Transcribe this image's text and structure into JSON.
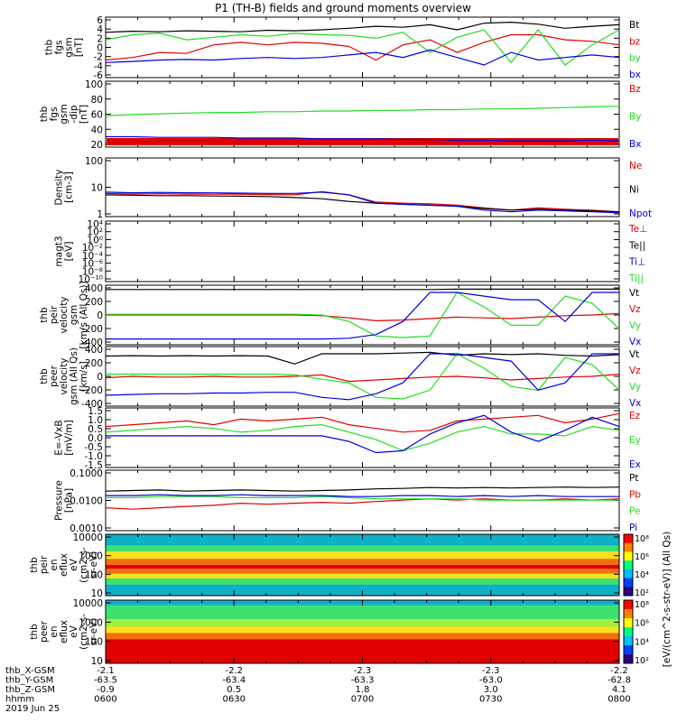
{
  "title": "P1 (TH-B) fields and ground moments overview",
  "colors": {
    "black": "#000000",
    "red": "#e00000",
    "green": "#22dd22",
    "blue": "#0000dd"
  },
  "chart_data": [
    {
      "type": "line",
      "ylabel": [
        "thb",
        "fgs",
        "gsm",
        "[nT]"
      ],
      "yticks": [
        "6",
        "4",
        "2",
        "0",
        "-2",
        "-4",
        "-6"
      ],
      "ylim": [
        -6,
        6
      ],
      "series": [
        {
          "name": "Bt",
          "color": "#000000",
          "values": [
            3.0,
            3.2,
            3.1,
            3.3,
            3.2,
            3.1,
            3.4,
            3.3,
            3.5,
            3.8,
            4.2,
            4.0,
            4.5,
            3.5,
            4.8,
            5.0,
            4.6,
            3.8,
            4.2,
            4.5
          ]
        },
        {
          "name": "bz",
          "color": "#e00000",
          "values": [
            -2.5,
            -2.0,
            -1.0,
            -1.2,
            0.5,
            1.0,
            0.5,
            1.0,
            0.8,
            0.2,
            -2.5,
            0.5,
            1.5,
            -1.0,
            1.0,
            2.5,
            2.5,
            1.5,
            1.2,
            0.5
          ]
        },
        {
          "name": "by",
          "color": "#22dd22",
          "values": [
            1.5,
            2.5,
            2.8,
            1.5,
            2.0,
            2.5,
            2.2,
            2.8,
            2.5,
            2.4,
            1.8,
            3.0,
            -1.0,
            2.0,
            3.5,
            -3.0,
            3.5,
            -3.5,
            0.5,
            3.5
          ]
        },
        {
          "name": "bx",
          "color": "#0000dd",
          "values": [
            -3.0,
            -2.8,
            -2.5,
            -2.4,
            -2.5,
            -2.2,
            -2.0,
            -2.2,
            -2.0,
            -1.5,
            -1.0,
            -2.0,
            -0.5,
            -2.0,
            -3.5,
            -1.0,
            -2.5,
            -2.0,
            -1.5,
            -2.0
          ]
        }
      ]
    },
    {
      "type": "line",
      "ylabel": [
        "thb",
        "fgs",
        "gsm",
        "-dip",
        "[nT]"
      ],
      "yticks": [
        "100",
        "80",
        "60",
        "40",
        "20"
      ],
      "ylim": [
        5,
        100
      ],
      "series": [
        {
          "name": "Bz",
          "color": "#e00000",
          "values": []
        },
        {
          "name": "By",
          "color": "#22dd22",
          "values": [
            50,
            52,
            53,
            54,
            55,
            55,
            56,
            56,
            57,
            57,
            58,
            58,
            59,
            59,
            60,
            60,
            61,
            62,
            63,
            64
          ]
        },
        {
          "name": "Bx",
          "color": "#0000dd",
          "values": [
            20,
            20,
            19,
            19,
            19,
            18,
            18,
            18,
            17,
            17,
            17,
            16,
            16,
            15,
            15,
            14,
            14,
            14,
            15,
            14
          ]
        }
      ]
    },
    {
      "type": "line",
      "scale": "log",
      "ylabel": [
        "Density",
        "[cm-3]"
      ],
      "yticks": [
        "100",
        "10",
        "1"
      ],
      "ylim": [
        0.6,
        300
      ],
      "series": [
        {
          "name": "Ne",
          "color": "#e00000",
          "values": [
            7,
            6.5,
            6.8,
            6.5,
            6.4,
            6.5,
            6.2,
            6.0,
            8.5,
            6.0,
            2.8,
            2.5,
            2.3,
            2.0,
            1.5,
            1.2,
            1.5,
            1.3,
            1.2,
            1.0
          ]
        },
        {
          "name": "Ni",
          "color": "#000000",
          "values": [
            6,
            5.8,
            5.5,
            5.5,
            5.3,
            5.2,
            5.0,
            4.5,
            4.0,
            3.0,
            2.5,
            2.2,
            2.0,
            1.8,
            1.4,
            1.2,
            1.3,
            1.2,
            1.1,
            1.0
          ]
        },
        {
          "name": "Npot",
          "color": "#0000dd",
          "values": [
            8,
            7.5,
            7.8,
            7.5,
            7.4,
            7.2,
            7.0,
            7.0,
            8.0,
            6.0,
            2.5,
            2.2,
            2.0,
            1.8,
            1.2,
            1.0,
            1.2,
            1.1,
            1.0,
            0.9
          ]
        }
      ]
    },
    {
      "type": "line",
      "scale": "log",
      "ylabel": [
        "magt3",
        "[eV]"
      ],
      "yticks": [
        "10⁴",
        "10²",
        "10⁰",
        "10⁻²",
        "10⁻⁴",
        "10⁻⁶",
        "10⁻⁸",
        "10⁻¹⁰"
      ],
      "ylim": [
        1e-11,
        100000.0
      ],
      "series": [
        {
          "name": "Te⊥",
          "color": "#e00000",
          "values": []
        },
        {
          "name": "Te||",
          "color": "#000000",
          "values": []
        },
        {
          "name": "Ti⊥",
          "color": "#0000dd",
          "values": []
        },
        {
          "name": "Ti||",
          "color": "#22dd22",
          "values": []
        }
      ]
    },
    {
      "type": "line",
      "ylabel": [
        "thb",
        "peir",
        "velocity",
        "gsm",
        "[km/s (All Qs)]"
      ],
      "yticks": [
        "400",
        "200",
        "0",
        "-200",
        "-400"
      ],
      "ylim": [
        -420,
        400
      ],
      "series": [
        {
          "name": "Vt",
          "color": "#000000",
          "values": [
            340,
            340,
            340,
            340,
            340,
            340,
            340,
            340,
            340,
            340,
            340,
            340,
            340,
            345,
            345,
            345,
            345,
            345,
            345,
            345
          ]
        },
        {
          "name": "Vz",
          "color": "#e00000",
          "values": [
            -10,
            -10,
            -10,
            -10,
            -10,
            -10,
            -10,
            -10,
            -20,
            -50,
            -90,
            -80,
            -60,
            -40,
            -50,
            -60,
            -40,
            -20,
            -10,
            10
          ]
        },
        {
          "name": "Vy",
          "color": "#22dd22",
          "values": [
            0,
            0,
            0,
            0,
            0,
            0,
            0,
            0,
            -10,
            -100,
            -300,
            -320,
            -300,
            300,
            100,
            -150,
            -150,
            250,
            150,
            -200
          ]
        },
        {
          "name": "Vx",
          "color": "#0000dd",
          "values": [
            -340,
            -340,
            -340,
            -340,
            -340,
            -340,
            -340,
            -340,
            -340,
            -330,
            -280,
            -100,
            300,
            300,
            250,
            200,
            200,
            -100,
            300,
            300
          ]
        }
      ]
    },
    {
      "type": "line",
      "ylabel": [
        "thb",
        "peer",
        "velocity",
        "gsm (All Qs)",
        "[km/s]"
      ],
      "yticks": [
        "400",
        "200",
        "0",
        "-200",
        "-400"
      ],
      "ylim": [
        -420,
        400
      ],
      "series": [
        {
          "name": "Vt",
          "color": "#000000",
          "values": [
            270,
            275,
            270,
            275,
            270,
            275,
            270,
            160,
            300,
            300,
            300,
            310,
            320,
            280,
            300,
            290,
            300,
            280,
            270,
            290
          ]
        },
        {
          "name": "Vz",
          "color": "#e00000",
          "values": [
            -30,
            -10,
            -20,
            -20,
            -10,
            -20,
            -20,
            -10,
            10,
            -80,
            -60,
            -40,
            -20,
            -10,
            -30,
            -60,
            -40,
            -20,
            -10,
            20
          ]
        },
        {
          "name": "Vy",
          "color": "#22dd22",
          "values": [
            20,
            20,
            20,
            20,
            20,
            20,
            20,
            10,
            -50,
            -100,
            -300,
            -320,
            -200,
            300,
            100,
            -150,
            -200,
            250,
            150,
            -200
          ]
        },
        {
          "name": "Vx",
          "color": "#0000dd",
          "values": [
            -270,
            -260,
            -250,
            -250,
            -240,
            -240,
            -230,
            -230,
            -300,
            -330,
            -250,
            -100,
            300,
            300,
            250,
            200,
            -200,
            -100,
            300,
            300
          ]
        }
      ]
    },
    {
      "type": "line",
      "ylabel": [
        "E=-VxB",
        "[mV/m]"
      ],
      "yticks": [
        "1.5",
        "1.0",
        "0.5",
        "0.0",
        "-0.5",
        "-1.0",
        "-1.5"
      ],
      "ylim": [
        -1.7,
        1.5
      ],
      "series": [
        {
          "name": "Ez",
          "color": "#e00000",
          "values": [
            0.5,
            0.6,
            0.7,
            0.8,
            0.6,
            0.9,
            0.8,
            0.9,
            1.0,
            0.6,
            0.4,
            0.2,
            0.3,
            0.8,
            0.9,
            1.0,
            1.1,
            0.7,
            0.9,
            1.2
          ]
        },
        {
          "name": "Ey",
          "color": "#22dd22",
          "values": [
            0.2,
            0.3,
            0.4,
            0.5,
            0.4,
            0.2,
            0.3,
            0.5,
            0.6,
            0.2,
            -0.2,
            -0.8,
            -0.4,
            0.2,
            0.5,
            0.1,
            0.1,
            0.0,
            0.5,
            0.3
          ]
        },
        {
          "name": "Ex",
          "color": "#0000dd",
          "values": [
            0.0,
            0.0,
            0.0,
            0.0,
            0.0,
            0.0,
            0.0,
            0.0,
            0.0,
            -0.3,
            -0.9,
            -0.8,
            0.1,
            0.7,
            1.1,
            0.2,
            -0.3,
            0.3,
            1.0,
            0.5
          ]
        }
      ]
    },
    {
      "type": "line",
      "scale": "log",
      "ylabel": [
        "Pressure",
        "[nPa]"
      ],
      "yticks": [
        "0.1000",
        "0.0100",
        "0.0010"
      ],
      "ylim": [
        0.0005,
        0.12
      ],
      "series": [
        {
          "name": "Pt",
          "color": "#000000",
          "values": [
            0.018,
            0.019,
            0.02,
            0.018,
            0.019,
            0.02,
            0.019,
            0.018,
            0.019,
            0.02,
            0.022,
            0.023,
            0.025,
            0.024,
            0.025,
            0.024,
            0.025,
            0.026,
            0.025,
            0.026
          ]
        },
        {
          "name": "Pb",
          "color": "#e00000",
          "values": [
            0.004,
            0.0035,
            0.004,
            0.0045,
            0.005,
            0.006,
            0.0055,
            0.006,
            0.0065,
            0.006,
            0.007,
            0.008,
            0.009,
            0.008,
            0.009,
            0.008,
            0.008,
            0.009,
            0.008,
            0.009
          ]
        },
        {
          "name": "Pe",
          "color": "#22dd22",
          "values": [
            0.01,
            0.01,
            0.011,
            0.011,
            0.011,
            0.01,
            0.01,
            0.01,
            0.011,
            0.01,
            0.009,
            0.009,
            0.009,
            0.009,
            0.008,
            0.008,
            0.008,
            0.008,
            0.008,
            0.008
          ]
        },
        {
          "name": "Pi",
          "color": "#0000dd",
          "values": [
            0.012,
            0.012,
            0.013,
            0.012,
            0.012,
            0.013,
            0.012,
            0.012,
            0.012,
            0.011,
            0.011,
            0.012,
            0.012,
            0.011,
            0.012,
            0.011,
            0.012,
            0.011,
            0.011,
            0.011
          ]
        }
      ]
    },
    {
      "type": "heatmap",
      "ylabel": [
        "thb",
        "peir",
        "en",
        "eflux",
        "eV",
        "(cm2-s-",
        "sr-eV)"
      ],
      "yticks": [
        "10000",
        "1000",
        "100",
        "10"
      ],
      "bands": [
        {
          "from": 0.0,
          "to": 0.18,
          "color": "#10b0c8"
        },
        {
          "from": 0.18,
          "to": 0.28,
          "color": "#40e070"
        },
        {
          "from": 0.28,
          "to": 0.4,
          "color": "#f8e020"
        },
        {
          "from": 0.4,
          "to": 0.5,
          "color": "#f07010"
        },
        {
          "from": 0.5,
          "to": 0.56,
          "color": "#e00000"
        },
        {
          "from": 0.56,
          "to": 0.64,
          "color": "#f07010"
        },
        {
          "from": 0.64,
          "to": 0.72,
          "color": "#f8e020"
        },
        {
          "from": 0.72,
          "to": 0.82,
          "color": "#40e070"
        },
        {
          "from": 0.82,
          "to": 1.0,
          "color": "#10b0c8"
        }
      ]
    },
    {
      "type": "heatmap",
      "ylabel": [
        "thb",
        "peer",
        "en",
        "eflux",
        "eV",
        "(cm2-s-",
        "sr-eV)"
      ],
      "yticks": [
        "10000",
        "1000",
        "100",
        "10"
      ],
      "bands": [
        {
          "from": 0.0,
          "to": 0.08,
          "color": "#10b0c8"
        },
        {
          "from": 0.08,
          "to": 0.3,
          "color": "#40e070"
        },
        {
          "from": 0.3,
          "to": 0.42,
          "color": "#a0f040"
        },
        {
          "from": 0.42,
          "to": 0.52,
          "color": "#f8e020"
        },
        {
          "from": 0.52,
          "to": 0.62,
          "color": "#f07010"
        },
        {
          "from": 0.62,
          "to": 1.0,
          "color": "#e00000"
        }
      ]
    }
  ],
  "colorbar": {
    "label": "[eV/(cm^2-s-str-eV)] (All Qs)",
    "ticks1": [
      "10⁸",
      "10⁶",
      "10⁴",
      "10²"
    ],
    "ticks2": [
      "10⁸",
      "10⁶",
      "10⁴",
      "10²"
    ]
  },
  "xaxis": {
    "rows": [
      {
        "label": "thb_X-GSM",
        "values": [
          "-2.1",
          "-2.2",
          "-2.3",
          "-2.3",
          "-2.2"
        ]
      },
      {
        "label": "thb_Y-GSM",
        "values": [
          "-63.5",
          "-63.4",
          "-63.3",
          "-63.0",
          "-62.8"
        ]
      },
      {
        "label": "thb_Z-GSM",
        "values": [
          "-0.9",
          "0.5",
          "1.8",
          "3.0",
          "4.1"
        ]
      },
      {
        "label": "hhmm",
        "values": [
          "0600",
          "0630",
          "0700",
          "0730",
          "0800"
        ]
      }
    ],
    "date": "2019 Jun 25"
  }
}
